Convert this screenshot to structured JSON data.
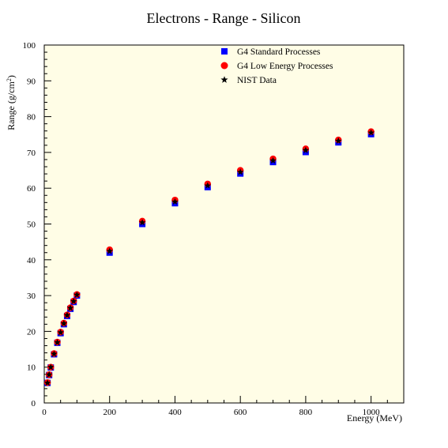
{
  "chart_data": {
    "type": "scatter",
    "title": "Electrons - Range - Silicon",
    "xlabel": "Energy (MeV)",
    "ylabel": {
      "base": "Range (g/cm",
      "sup": "2",
      "end": ")"
    },
    "xlim": [
      0,
      1100
    ],
    "ylim": [
      0,
      100
    ],
    "x_ticks": [
      0,
      200,
      400,
      600,
      800,
      1000
    ],
    "y_ticks": [
      0,
      10,
      20,
      30,
      40,
      50,
      60,
      70,
      80,
      90,
      100
    ],
    "grid": false,
    "legend_position": "top-right",
    "colors": {
      "plot_background": "#fffde6",
      "standard": "#0000ff",
      "low_energy": "#ff0000",
      "nist": "#000000"
    },
    "x": [
      10,
      15,
      20,
      30,
      40,
      50,
      60,
      70,
      80,
      90,
      100,
      200,
      300,
      400,
      500,
      600,
      700,
      800,
      900,
      1000
    ],
    "series": [
      {
        "name": "G4 Standard Processes",
        "marker": "square",
        "values": [
          5.6,
          7.8,
          9.9,
          13.6,
          16.8,
          19.5,
          22.0,
          24.3,
          26.3,
          28.2,
          30.0,
          42.0,
          50.0,
          55.8,
          60.3,
          64.1,
          67.3,
          70.1,
          72.8,
          75.1
        ]
      },
      {
        "name": "G4 Low Energy Processes",
        "marker": "circle",
        "values": [
          5.7,
          7.9,
          10.0,
          13.8,
          17.0,
          19.8,
          22.3,
          24.6,
          26.6,
          28.5,
          30.3,
          42.8,
          50.8,
          56.7,
          61.2,
          65.0,
          68.2,
          71.0,
          73.5,
          75.8
        ]
      },
      {
        "name": "NIST Data",
        "marker": "star",
        "values": [
          5.6,
          7.9,
          10.0,
          13.7,
          16.9,
          19.7,
          22.2,
          24.5,
          26.5,
          28.4,
          30.2,
          42.4,
          50.4,
          56.2,
          60.7,
          64.5,
          67.7,
          70.6,
          73.2,
          75.5
        ]
      }
    ]
  }
}
